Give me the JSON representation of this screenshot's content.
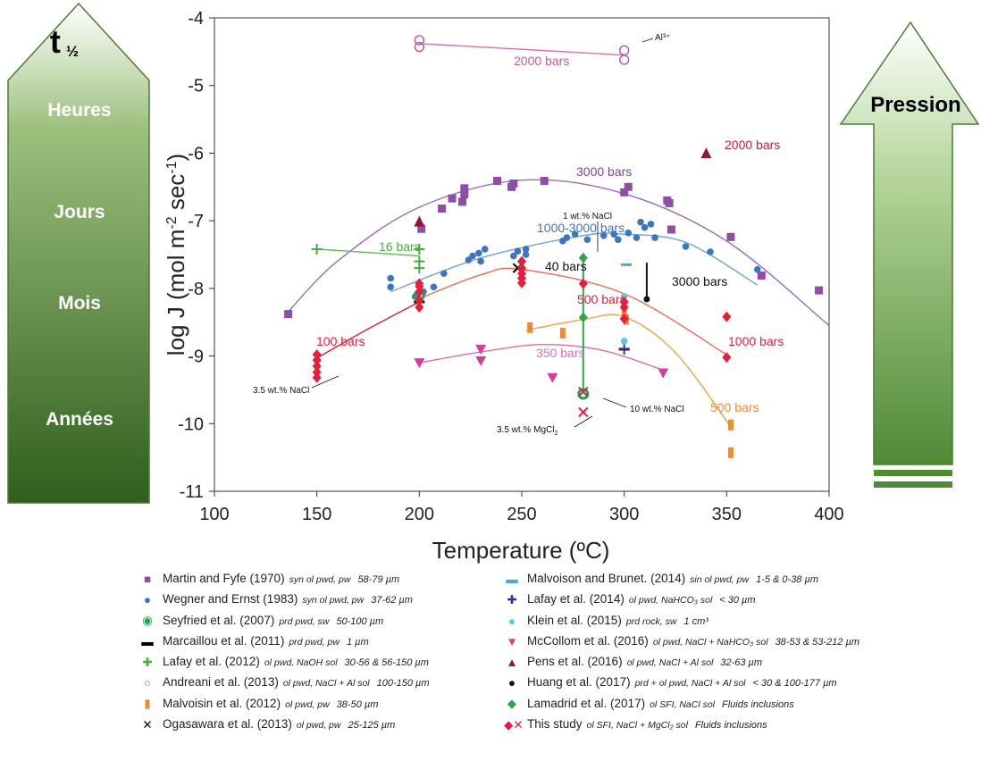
{
  "chart_data": {
    "type": "scatter",
    "title": "",
    "xlabel": "Temperature (ºC)",
    "ylabel": "log J (mol m-2 sec-1)",
    "xlim": [
      100,
      400
    ],
    "ylim": [
      -11,
      -4
    ],
    "xticks": [
      100,
      150,
      200,
      250,
      300,
      350,
      400
    ],
    "yticks": [
      -4,
      -5,
      -6,
      -7,
      -8,
      -9,
      -10,
      -11
    ],
    "grid": false,
    "series": [
      {
        "name": "Martin and Fyfe (1970)",
        "marker": "square",
        "color": "#8e4ea8",
        "points": [
          [
            136,
            -8.38
          ],
          [
            201,
            -7.12
          ],
          [
            211,
            -6.82
          ],
          [
            216,
            -6.67
          ],
          [
            221,
            -6.72
          ],
          [
            222,
            -6.52
          ],
          [
            222,
            -6.61
          ],
          [
            238,
            -6.41
          ],
          [
            245,
            -6.5
          ],
          [
            246,
            -6.45
          ],
          [
            261,
            -6.41
          ],
          [
            300,
            -6.58
          ],
          [
            302,
            -6.5
          ],
          [
            321,
            -6.7
          ],
          [
            322,
            -6.74
          ],
          [
            323,
            -7.13
          ],
          [
            352,
            -7.24
          ],
          [
            367,
            -7.81
          ],
          [
            395,
            -8.03
          ]
        ]
      },
      {
        "name": "Wegner and Ernst (1983)",
        "marker": "circle",
        "color": "#3f75c0",
        "points": [
          [
            186,
            -7.85
          ],
          [
            186,
            -7.98
          ],
          [
            198,
            -8.12
          ],
          [
            202,
            -8.05
          ],
          [
            207,
            -7.98
          ],
          [
            212,
            -7.78
          ],
          [
            224,
            -7.58
          ],
          [
            226,
            -7.52
          ],
          [
            229,
            -7.48
          ],
          [
            232,
            -7.42
          ],
          [
            230,
            -7.6
          ],
          [
            246,
            -7.52
          ],
          [
            248,
            -7.45
          ],
          [
            252,
            -7.42
          ],
          [
            252,
            -7.5
          ],
          [
            270,
            -7.3
          ],
          [
            272,
            -7.25
          ],
          [
            276,
            -7.2
          ],
          [
            282,
            -7.28
          ],
          [
            290,
            -7.22
          ],
          [
            295,
            -7.2
          ],
          [
            297,
            -7.28
          ],
          [
            302,
            -7.18
          ],
          [
            306,
            -7.25
          ],
          [
            308,
            -7.02
          ],
          [
            310,
            -7.1
          ],
          [
            313,
            -7.05
          ],
          [
            315,
            -7.25
          ],
          [
            330,
            -7.38
          ],
          [
            342,
            -7.46
          ],
          [
            365,
            -7.72
          ]
        ]
      },
      {
        "name": "Seyfried et al. (2007)",
        "marker": "ring",
        "color": "#21a05c",
        "points": [
          [
            200,
            -8.1
          ],
          [
            280,
            -9.56
          ]
        ]
      },
      {
        "name": "Marcaillou et al. (2011)",
        "marker": "dash",
        "color": "#000000",
        "points": [
          [
            200,
            -8.2
          ],
          [
            300,
            -8.9
          ]
        ]
      },
      {
        "name": "Lafay et al. (2012)",
        "marker": "plus",
        "color": "#4aaa40",
        "points": [
          [
            150,
            -7.42
          ],
          [
            200,
            -7.42
          ],
          [
            200,
            -7.6
          ],
          [
            200,
            -7.7
          ]
        ]
      },
      {
        "name": "Andreani et al. (2013)",
        "marker": "open-circle",
        "color": "#c05ab0",
        "points": [
          [
            200,
            -4.33
          ],
          [
            200,
            -4.43
          ],
          [
            300,
            -4.48
          ],
          [
            300,
            -4.62
          ]
        ]
      },
      {
        "name": "Malvoisin et al. (2012)",
        "marker": "bar",
        "color": "#ef8b2c",
        "points": [
          [
            254,
            -8.58
          ],
          [
            270,
            -8.66
          ],
          [
            300,
            -8.32
          ],
          [
            301,
            -8.46
          ],
          [
            352,
            -10.02
          ],
          [
            352,
            -10.43
          ]
        ]
      },
      {
        "name": "Ogasawara et al. (2013)",
        "marker": "cross",
        "color": "#000000",
        "points": [
          [
            248,
            -7.7
          ]
        ]
      },
      {
        "name": "Malvoison and Brunet. (2014)",
        "marker": "dash",
        "color": "#4aa8d8",
        "points": [
          [
            301,
            -7.65
          ]
        ]
      },
      {
        "name": "Lafay et al. (2014)",
        "marker": "plus",
        "color": "#34338e",
        "points": [
          [
            300,
            -8.9
          ]
        ]
      },
      {
        "name": "Klein et al. (2015)",
        "marker": "circle",
        "color": "#5bc8e8",
        "points": [
          [
            300,
            -8.12
          ],
          [
            300,
            -8.78
          ]
        ]
      },
      {
        "name": "McCollom et al. (2016)",
        "marker": "triangle-down",
        "color": "#d63c9a",
        "points": [
          [
            200,
            -9.1
          ],
          [
            230,
            -8.9
          ],
          [
            230,
            -9.07
          ],
          [
            265,
            -9.32
          ],
          [
            319,
            -9.25
          ]
        ]
      },
      {
        "name": "Pens et al. (2016)",
        "marker": "triangle-up",
        "color": "#8b1a3a",
        "points": [
          [
            200,
            -7.02
          ],
          [
            340,
            -6.01
          ]
        ]
      },
      {
        "name": "Huang et al. (2017)",
        "marker": "dot",
        "color": "#111111",
        "points": [
          [
            311,
            -8.16
          ]
        ]
      },
      {
        "name": "Lamadrid et al. (2017)",
        "marker": "diamond",
        "color": "#2fa64a",
        "points": [
          [
            280,
            -7.55
          ],
          [
            280,
            -8.43
          ]
        ]
      },
      {
        "name": "This study",
        "marker": "diamond",
        "color": "#e0203c",
        "points": [
          [
            150,
            -8.98
          ],
          [
            150,
            -9.06
          ],
          [
            150,
            -9.15
          ],
          [
            150,
            -9.24
          ],
          [
            150,
            -9.32
          ],
          [
            200,
            -7.93
          ],
          [
            200,
            -7.97
          ],
          [
            200,
            -8.05
          ],
          [
            200,
            -8.18
          ],
          [
            200,
            -8.28
          ],
          [
            250,
            -7.6
          ],
          [
            250,
            -7.7
          ],
          [
            250,
            -7.78
          ],
          [
            250,
            -7.85
          ],
          [
            250,
            -7.92
          ],
          [
            280,
            -7.93
          ],
          [
            300,
            -8.2
          ],
          [
            300,
            -8.28
          ],
          [
            300,
            -8.45
          ],
          [
            350,
            -8.42
          ],
          [
            350,
            -9.02
          ]
        ],
        "crosses": [
          [
            280,
            -9.83
          ],
          [
            280,
            -9.53
          ]
        ]
      }
    ],
    "trend_lines": [
      {
        "label": "3000 bars",
        "color": "#9b6bc4",
        "x": [
          135,
          160,
          200,
          250,
          300,
          350,
          400
        ],
        "y": [
          -8.38,
          -7.6,
          -6.8,
          -6.4,
          -6.6,
          -7.3,
          -8.55
        ]
      },
      {
        "label": "1000-3000 bars",
        "color": "#6aa5d6",
        "x": [
          186,
          230,
          280,
          300,
          330,
          365
        ],
        "y": [
          -8.05,
          -7.55,
          -7.22,
          -7.2,
          -7.32,
          -7.95
        ]
      },
      {
        "label": "500 bars",
        "color": "#ef6850",
        "x": [
          200,
          230,
          250,
          300,
          350
        ],
        "y": [
          -8.15,
          -7.8,
          -7.72,
          -8.08,
          -8.98
        ]
      },
      {
        "label": "100 bars",
        "color": "#e0203c",
        "x": [
          150,
          175,
          200
        ],
        "y": [
          -9.03,
          -8.6,
          -8.2
        ]
      },
      {
        "label": "350 bars",
        "color": "#d96fb0",
        "x": [
          200,
          230,
          260,
          290,
          320
        ],
        "y": [
          -9.1,
          -8.94,
          -8.83,
          -8.92,
          -9.22
        ]
      },
      {
        "label": "500 bars",
        "color": "#f2a24a",
        "x": [
          252,
          280,
          300,
          325,
          352
        ],
        "y": [
          -8.62,
          -8.46,
          -8.42,
          -8.95,
          -10.05
        ]
      },
      {
        "label": "16 bars",
        "color": "#5cbb55",
        "x": [
          150,
          200
        ],
        "y": [
          -7.42,
          -7.52
        ]
      },
      {
        "label": "2000 bars",
        "color": "#d66dbd",
        "x": [
          200,
          300
        ],
        "y": [
          -4.38,
          -4.55
        ]
      }
    ],
    "vertical_bars": [
      {
        "color": "#2fa64a",
        "x": 280,
        "y": [
          -7.55,
          -9.55
        ]
      },
      {
        "color": "#111111",
        "x": 311,
        "y": [
          -7.62,
          -8.16
        ]
      }
    ]
  },
  "annotations": {
    "lbl_2000_top": "2000 bars",
    "lbl_al": "Al³⁺",
    "lbl_2000_red": "2000 bars",
    "lbl_3000": "3000 bars",
    "lbl_1wt": "1 wt.% NaCl",
    "lbl_1000_3000": "1000-3000 bars",
    "lbl_16": "16 bars",
    "lbl_40": "40 bars",
    "lbl_3000_black": "3000 bars",
    "lbl_500_red": "500 bars",
    "lbl_100": "100 bars",
    "lbl_35nacl": "3.5 wt.% NaCl",
    "lbl_350": "350 bars",
    "lbl_1000": "1000 bars",
    "lbl_10wt": "10 wt.% NaCl",
    "lbl_mgcl2": "3.5 wt.% MgCl",
    "lbl_mgcl2_sub": "2",
    "lbl_500_orange": "500 bars"
  },
  "left_arrow": {
    "title": "t",
    "title_sub": "½",
    "levels": [
      "Heures",
      "Jours",
      "Mois",
      "Années"
    ],
    "color_top": "#ffffff",
    "color_bottom": "#2f5e1e"
  },
  "right_arrow": {
    "label": "Pression",
    "color_top": "#ffffff",
    "color_bottom": "#4f8a35"
  },
  "legend": {
    "col1": [
      {
        "marker": "■",
        "color": "#8e4ea8",
        "name": "Martin and Fyfe (1970)",
        "desc": "syn ol pwd, pw",
        "size": "58-79 µm"
      },
      {
        "marker": "●",
        "color": "#3f75c0",
        "name": "Wegner and Ernst (1983)",
        "desc": "syn ol pwd, pw",
        "size": "37-62 µm"
      },
      {
        "marker": "◉",
        "color": "#21a05c",
        "name": "Seyfried et al. (2007)",
        "desc": "prd pwd, sw",
        "size": "50-100 µm"
      },
      {
        "marker": "▬",
        "color": "#000000",
        "name": "Marcaillou et al. (2011)",
        "desc": "prd pwd, pw",
        "size": "1 µm"
      },
      {
        "marker": "✚",
        "color": "#4aaa40",
        "name": "Lafay et al. (2012)",
        "desc": "ol pwd, NaOH sol",
        "size": "30-56 & 56-150 µm"
      },
      {
        "marker": "○",
        "color": "#c05ab0",
        "name": "Andreani et al. (2013)",
        "desc": "ol pwd, NaCl + Al sol",
        "size": "100-150 µm"
      },
      {
        "marker": "▮",
        "color": "#ef8b2c",
        "name": "Malvoisin et al. (2012)",
        "desc": "ol pwd, pw",
        "size": "38-50 µm"
      },
      {
        "marker": "✕",
        "color": "#000000",
        "name": "Ogasawara et al. (2013)",
        "desc": "ol pwd, pw",
        "size": "25-125 µm"
      }
    ],
    "col2": [
      {
        "marker": "▬",
        "color": "#4aa8d8",
        "name": "Malvoison and Brunet. (2014)",
        "desc": "sin ol pwd, pw",
        "size": "1-5 & 0-38 µm"
      },
      {
        "marker": "✚",
        "color": "#34338e",
        "name": "Lafay et al. (2014)",
        "desc": "ol pwd, NaHCO₃ sol",
        "size": "< 30 µm"
      },
      {
        "marker": "●",
        "color": "#5bc8e8",
        "name": "Klein et al. (2015)",
        "desc": "prd rock, sw",
        "size": "1 cm³"
      },
      {
        "marker": "▼",
        "color": "#d63c9a",
        "name": "McCollom et al. (2016)",
        "desc": "ol pwd, NaCl + NaHCO₃ sol",
        "size": "38-53 & 53-212 µm"
      },
      {
        "marker": "▲",
        "color": "#8b1a3a",
        "name": "Pens et al. (2016)",
        "desc": "ol pwd, NaCl + Al sol",
        "size": "32-63 µm"
      },
      {
        "marker": "●",
        "color": "#111111",
        "name": "Huang et al. (2017)",
        "desc": "prd + ol pwd, NaCl + Al sol",
        "size": "< 30 & 100-177 µm"
      },
      {
        "marker": "◆",
        "color": "#2fa64a",
        "name": "Lamadrid et al. (2017)",
        "desc": "ol SFI, NaCl sol",
        "size": "Fluids inclusions"
      },
      {
        "marker": "◆✕",
        "color": "#e0203c",
        "name": "This study",
        "desc": "ol SFI, NaCl + MgCl₂ sol",
        "size": "Fluids inclusions"
      }
    ]
  }
}
